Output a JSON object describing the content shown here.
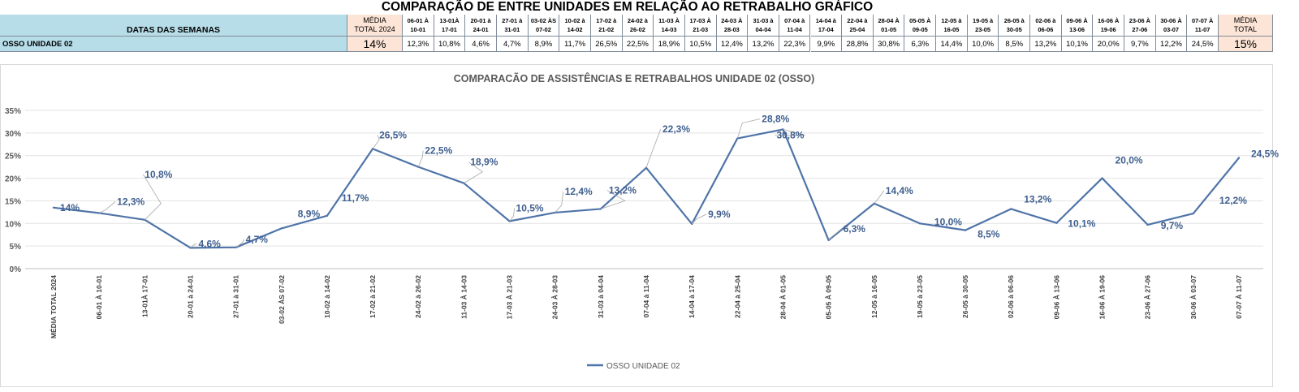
{
  "page_title": "COMPARAÇÃO DE ENTRE UNIDADES EM RELAÇÃO AO RETRABALHO GRÁFICO",
  "table": {
    "header_label": "DATAS DAS SEMANAS",
    "row_label": "OSSO UNIDADE 02",
    "media_total_2024_header": "MÉDIA\nTOTAL 2024",
    "media_total_2024_value": "14%",
    "media_total_header": "MÉDIA\nTOTAL",
    "media_total_value": "15%",
    "weeks": [
      {
        "label": "06-01 À\n10-01",
        "value": "12,3%"
      },
      {
        "label": "13-01À\n17-01",
        "value": "10,8%"
      },
      {
        "label": "20-01 à\n24-01",
        "value": "4,6%"
      },
      {
        "label": "27-01 à\n31-01",
        "value": "4,7%"
      },
      {
        "label": "03-02 ÀS\n07-02",
        "value": "8,9%"
      },
      {
        "label": "10-02 à\n14-02",
        "value": "11,7%"
      },
      {
        "label": "17-02 à\n21-02",
        "value": "26,5%"
      },
      {
        "label": "24-02 à\n26-02",
        "value": "22,5%"
      },
      {
        "label": "11-03 À\n14-03",
        "value": "18,9%"
      },
      {
        "label": "17-03 À\n21-03",
        "value": "10,5%"
      },
      {
        "label": "24-03 À\n28-03",
        "value": "12,4%"
      },
      {
        "label": "31-03 à\n04-04",
        "value": "13,2%"
      },
      {
        "label": "07-04 à\n11-04",
        "value": "22,3%"
      },
      {
        "label": "14-04 à\n17-04",
        "value": "9,9%"
      },
      {
        "label": "22-04 à\n25-04",
        "value": "28,8%"
      },
      {
        "label": "28-04 À\n01-05",
        "value": "30,8%"
      },
      {
        "label": "05-05 À\n09-05",
        "value": "6,3%"
      },
      {
        "label": "12-05 à\n16-05",
        "value": "14,4%"
      },
      {
        "label": "19-05 à\n23-05",
        "value": "10,0%"
      },
      {
        "label": "26-05 à\n30-05",
        "value": "8,5%"
      },
      {
        "label": "02-06 à\n06-06",
        "value": "13,2%"
      },
      {
        "label": "09-06 À\n13-06",
        "value": "10,1%"
      },
      {
        "label": "16-06 À\n19-06",
        "value": "20,0%"
      },
      {
        "label": "23-06 À\n27-06",
        "value": "9,7%"
      },
      {
        "label": "30-06 À\n03-07",
        "value": "12,2%"
      },
      {
        "label": "07-07 À\n11-07",
        "value": "24,5%"
      }
    ]
  },
  "chart_data": {
    "type": "line",
    "title": "COMPARACÃO DE ASSISTÊNCIAS E RETRABALHOS UNIDADE 02  (OSSO)",
    "y_ticks": [
      "0%",
      "5%",
      "10%",
      "15%",
      "20%",
      "25%",
      "30%",
      "35%"
    ],
    "ylim": [
      0,
      35
    ],
    "grid": true,
    "legend_position": "bottom",
    "categories": [
      "MÉDIA TOTAL 2024",
      "06-01 À 10-01",
      "13-01À 17-01",
      "20-01 à 24-01",
      "27-01 à 31-01",
      "03-02 ÀS 07-02",
      "10-02 à 14-02",
      "17-02 à 21-02",
      "24-02 à 26-02",
      "11-03  À 14-03",
      "17-03 À 21-03",
      "24-03 À 28-03",
      "31-03 à 04-04",
      "07-04 à 11-04",
      "14-04 à 17-04",
      "22-04 à 25-04",
      "28-04 À 01-05",
      "05-05 À 09-05",
      "12-05 à 16-05",
      "19-05 à 23-05",
      "26-05 à 30-05",
      "02-06 à 06-06",
      "09-06 À 13-06",
      "16-06 À 19-06",
      "23-06 À 27-06",
      "30-06 À 03-07",
      "07-07 À 11-07"
    ],
    "series": [
      {
        "name": "OSSO UNIDADE 02",
        "color": "#4f74a8",
        "values": [
          13.5,
          12.3,
          10.8,
          4.6,
          4.7,
          8.9,
          11.7,
          26.5,
          22.5,
          18.9,
          10.5,
          12.4,
          13.2,
          22.3,
          9.9,
          28.8,
          30.8,
          6.3,
          14.4,
          10.0,
          8.5,
          13.2,
          10.1,
          20.0,
          9.7,
          12.2,
          24.5
        ],
        "data_labels": [
          "14%",
          "12,3%",
          "10,8%",
          "4,6%",
          "4,7%",
          "8,9%",
          "11,7%",
          "26,5%",
          "22,5%",
          "18,9%",
          "10,5%",
          "12,4%",
          "13,2%",
          "22,3%",
          "9,9%",
          "28,8%",
          "30,8%",
          "6,3%",
          "14,4%",
          "10,0%",
          "8,5%",
          "13,2%",
          "10,1%",
          "20,0%",
          "9,7%",
          "12,2%",
          "24,5%"
        ]
      }
    ]
  },
  "colors": {
    "line": "#4f74a8",
    "label": "#3f5f8f",
    "header_blue": "#b7dde8",
    "header_peach": "#fce4d6",
    "gridline": "#d9d9d9"
  }
}
